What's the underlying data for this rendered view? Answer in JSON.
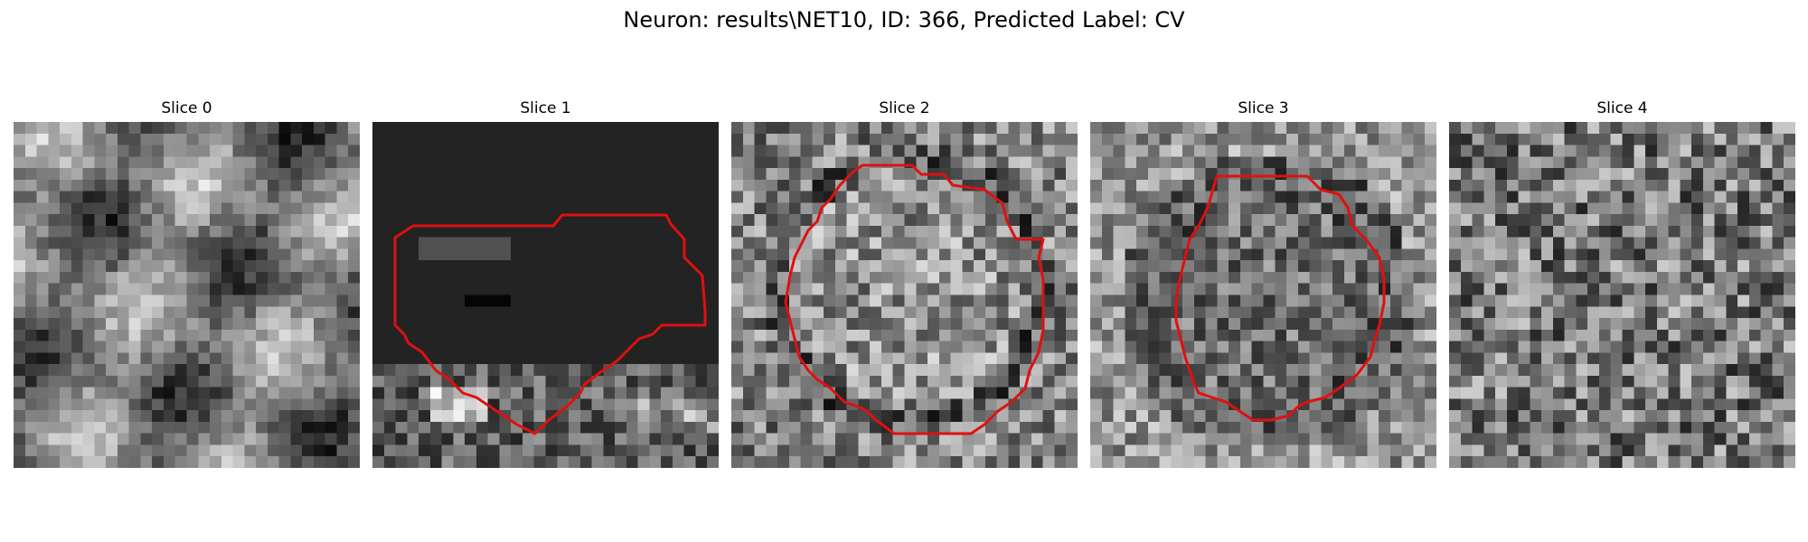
{
  "figure": {
    "title": "Neuron: results\\NET10, ID: 366, Predicted Label: CV"
  },
  "panels": [
    {
      "title": "Slice 0",
      "contour": false
    },
    {
      "title": "Slice 1",
      "contour": true
    },
    {
      "title": "Slice 2",
      "contour": true
    },
    {
      "title": "Slice 3",
      "contour": true
    },
    {
      "title": "Slice 4",
      "contour": false
    }
  ],
  "colors": {
    "contour": "#e01010",
    "background": "#ffffff"
  }
}
